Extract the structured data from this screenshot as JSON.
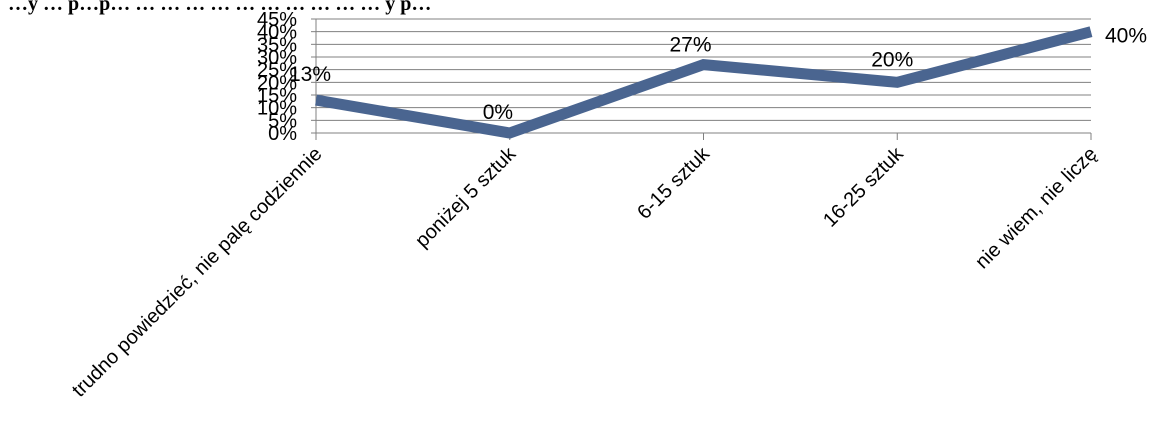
{
  "chart_data": {
    "type": "line",
    "title_fragment": "…y … p…p… … … … … … … … … … … y p…",
    "categories": [
      "trudno powiedzieć, nie palę codziennie",
      "poniżej 5 sztuk",
      "6-15 sztuk",
      "16-25 sztuk",
      "nie wiem, nie liczę"
    ],
    "series": [
      {
        "values": [
          13,
          0,
          27,
          20,
          40
        ],
        "data_labels": [
          "13%",
          "0%",
          "27%",
          "20%",
          "40%"
        ],
        "color": "#4a6590"
      }
    ],
    "y_ticks": [
      "0%",
      "5%",
      "10%",
      "15%",
      "20%",
      "25%",
      "30%",
      "35%",
      "40%",
      "45%"
    ],
    "ylim": [
      0,
      45
    ],
    "grid": true,
    "gridline_color": "#808080"
  }
}
